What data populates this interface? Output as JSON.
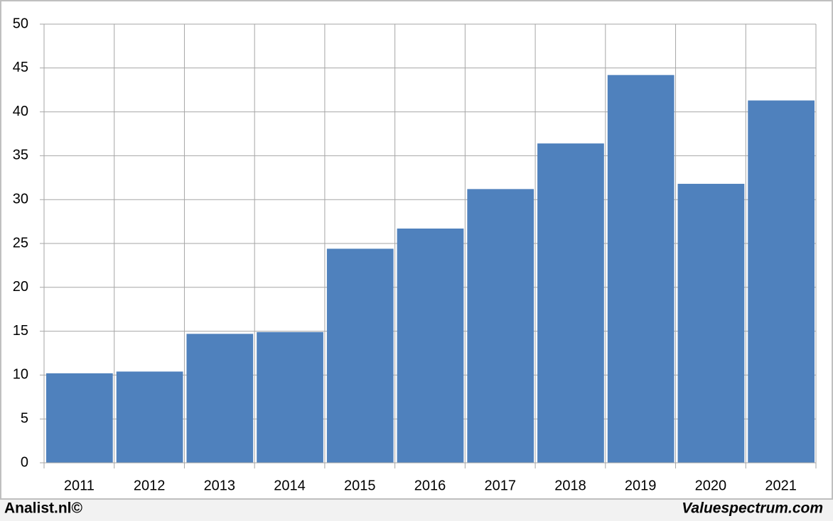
{
  "chart_data": {
    "type": "bar",
    "categories": [
      "2011",
      "2012",
      "2013",
      "2014",
      "2015",
      "2016",
      "2017",
      "2018",
      "2019",
      "2020",
      "2021"
    ],
    "values": [
      10.2,
      10.4,
      14.7,
      14.9,
      24.4,
      26.7,
      31.2,
      36.4,
      44.2,
      31.8,
      41.3
    ],
    "color": "#4f81bd",
    "ylim": [
      0,
      50
    ],
    "yticks": [
      0,
      5,
      10,
      15,
      20,
      25,
      30,
      35,
      40,
      45,
      50
    ],
    "grid": true,
    "annotations": [
      "Analist.nl©",
      "Valuespectrum.com"
    ]
  }
}
